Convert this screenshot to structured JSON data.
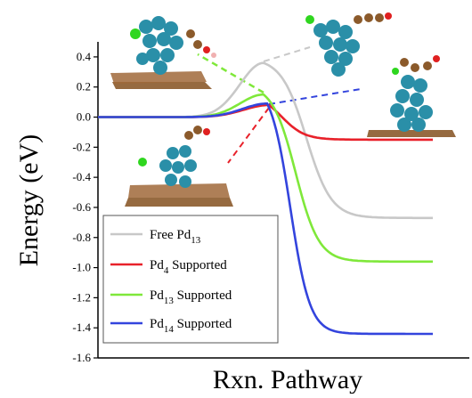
{
  "chart_data": {
    "type": "line",
    "xlabel": "Rxn. Pathway",
    "ylabel": "Energy (eV)",
    "ylim": [
      -1.6,
      0.5
    ],
    "yticks": [
      "0.4",
      "0.2",
      "0.0",
      "-0.2",
      "-0.4",
      "-0.6",
      "-0.8",
      "-1.0",
      "-1.2",
      "-1.4",
      "-1.6"
    ],
    "x_ticks_shown": false,
    "grid": false,
    "legend_position": "bottom-left",
    "legend": [
      {
        "base": "Free Pd",
        "sub": "13",
        "suffix": "",
        "color": "#c8c8c8"
      },
      {
        "base": "Pd",
        "sub": "4",
        "suffix": " Supported",
        "color": "#e8212a"
      },
      {
        "base": "Pd",
        "sub": "13",
        "suffix": " Supported",
        "color": "#7fe83a"
      },
      {
        "base": "Pd",
        "sub": "14",
        "suffix": " Supported",
        "color": "#3344dd"
      }
    ],
    "series": [
      {
        "color": "#c8c8c8",
        "start": 0.0,
        "peak": 0.36,
        "end": -0.67
      },
      {
        "color": "#e8212a",
        "start": 0.0,
        "peak": 0.08,
        "end": -0.15
      },
      {
        "color": "#7fe83a",
        "start": 0.0,
        "peak": 0.15,
        "end": -0.96
      },
      {
        "color": "#3344dd",
        "start": 0.0,
        "peak": 0.09,
        "end": -1.44
      }
    ],
    "annotations": [
      {
        "kind": "molecular-structure-image",
        "label": "free cluster transition state",
        "color": "#c8c8c8"
      },
      {
        "kind": "molecular-structure-image",
        "label": "supported cluster transition state",
        "color": "#e8212a"
      },
      {
        "kind": "molecular-structure-image",
        "label": "supported cluster transition state",
        "color": "#7fe83a"
      },
      {
        "kind": "molecular-structure-image",
        "label": "supported cluster transition state",
        "color": "#3344dd"
      }
    ]
  }
}
